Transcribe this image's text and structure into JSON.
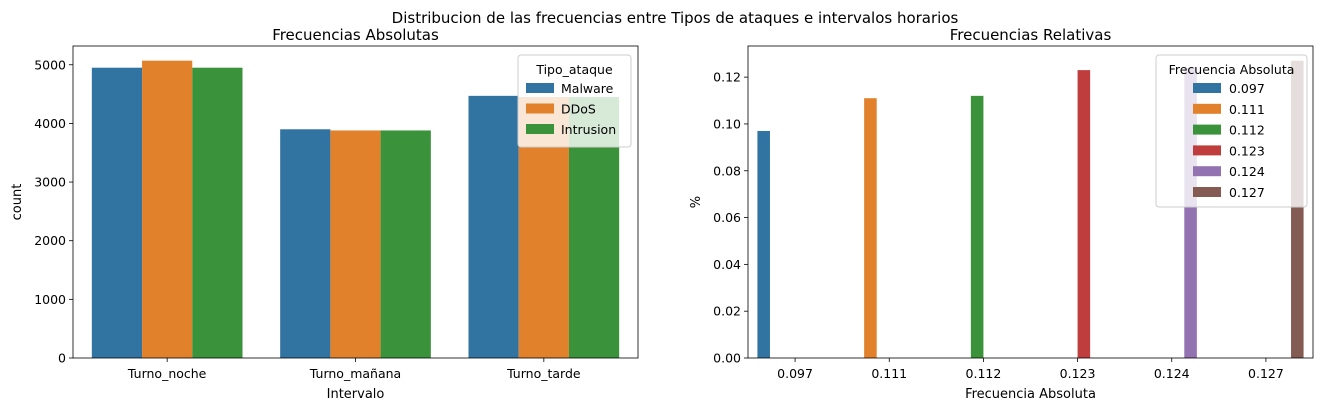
{
  "suptitle": "Distribucion de las frecuencias entre Tipos de ataques e intervalos horarios",
  "palette": [
    "#3274a1",
    "#e1812c",
    "#3a923a",
    "#c03d3e",
    "#9372b2",
    "#845b53"
  ],
  "chart_data": [
    {
      "type": "bar",
      "title": "Frecuencias Absolutas",
      "xlabel": "Intervalo",
      "ylabel": "count",
      "categories": [
        "Turno_noche",
        "Turno_mañana",
        "Turno_tarde"
      ],
      "series": [
        {
          "name": "Malware",
          "values": [
            4950,
            3900,
            4470
          ]
        },
        {
          "name": "DDoS",
          "values": [
            5070,
            3880,
            4450
          ]
        },
        {
          "name": "Intrusion",
          "values": [
            4950,
            3880,
            4450
          ]
        }
      ],
      "ylim": [
        0,
        5320
      ],
      "yticks": [
        0,
        1000,
        2000,
        3000,
        4000,
        5000
      ],
      "legend": {
        "title": "Tipo_ataque",
        "position": "top-right"
      },
      "grid": false
    },
    {
      "type": "bar",
      "title": "Frecuencias Relativas",
      "xlabel": "Frecuencia Absoluta",
      "ylabel": "%",
      "categories": [
        "0.097",
        "0.111",
        "0.112",
        "0.123",
        "0.124",
        "0.127"
      ],
      "series": [
        {
          "name": "0.097",
          "values": [
            0.097,
            0,
            0,
            0,
            0,
            0
          ]
        },
        {
          "name": "0.111",
          "values": [
            0,
            0.111,
            0,
            0,
            0,
            0
          ]
        },
        {
          "name": "0.112",
          "values": [
            0,
            0,
            0.112,
            0,
            0,
            0
          ]
        },
        {
          "name": "0.123",
          "values": [
            0,
            0,
            0,
            0.123,
            0,
            0
          ]
        },
        {
          "name": "0.124",
          "values": [
            0,
            0,
            0,
            0,
            0.124,
            0
          ]
        },
        {
          "name": "0.127",
          "values": [
            0,
            0,
            0,
            0,
            0,
            0.127
          ]
        }
      ],
      "ylim": [
        0,
        0.1333
      ],
      "yticks": [
        "0.00",
        "0.02",
        "0.04",
        "0.06",
        "0.08",
        "0.10",
        "0.12"
      ],
      "legend": {
        "title": "Frecuencia Absoluta",
        "position": "top-right"
      },
      "grid": false
    }
  ]
}
